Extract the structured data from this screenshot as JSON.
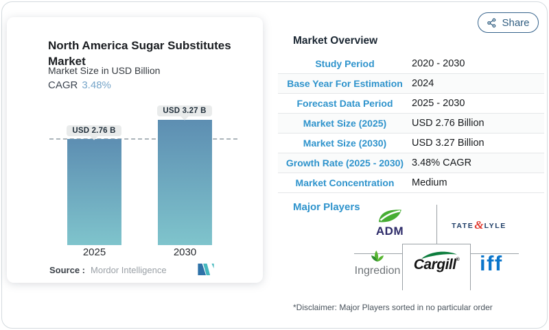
{
  "share": {
    "label": "Share"
  },
  "chart_panel": {
    "title": "North America Sugar Substitutes Market",
    "subtitle": "Market Size in USD Billion",
    "cagr_label": "CAGR",
    "cagr_value": "3.48%",
    "source_label": "Source :",
    "source_value": "Mordor Intelligence"
  },
  "chart_data": {
    "type": "bar",
    "title": "North America Sugar Substitutes Market",
    "ylabel": "Market Size in USD Billion",
    "categories": [
      "2025",
      "2030"
    ],
    "values": [
      2.76,
      3.27
    ],
    "bar_labels": [
      "USD 2.76 B",
      "USD 3.27 B"
    ],
    "cagr_percent": 3.48,
    "reference_line_value": 2.76,
    "ylim": [
      0,
      3.6
    ],
    "grid": false,
    "legend": false,
    "bar_color_top": "#5d8eb2",
    "bar_color_bottom": "#7fc4cc"
  },
  "overview": {
    "heading": "Market Overview",
    "rows": [
      {
        "label": "Study Period",
        "value": "2020 - 2030"
      },
      {
        "label": "Base Year For Estimation",
        "value": "2024"
      },
      {
        "label": "Forecast Data Period",
        "value": "2025 - 2030"
      },
      {
        "label": "Market Size (2025)",
        "value": "USD 2.76 Billion"
      },
      {
        "label": "Market Size (2030)",
        "value": "USD 3.27 Billion"
      },
      {
        "label": "Growth Rate (2025 - 2030)",
        "value": "3.48% CAGR"
      },
      {
        "label": "Market Concentration",
        "value": "Medium"
      }
    ]
  },
  "major_players": {
    "heading": "Major Players",
    "disclaimer": "*Disclaimer: Major Players sorted in no particular order",
    "trademark": "®",
    "players": [
      {
        "name": "ADM",
        "display": "ADM"
      },
      {
        "name": "Tate & Lyle",
        "first": "TATE",
        "amp": "&",
        "second": "LYLE"
      },
      {
        "name": "Ingredion",
        "display": "Ingredion"
      },
      {
        "name": "Cargill",
        "display": "Cargill"
      },
      {
        "name": "IFF",
        "display": "iff"
      }
    ]
  },
  "colors": {
    "accent_blue": "#2e93cc",
    "share_blue": "#2f5d80",
    "pill_bg": "#e9ebeb",
    "bar_gradient_top": "#5d8eb2",
    "bar_gradient_bottom": "#7fc4cc"
  }
}
